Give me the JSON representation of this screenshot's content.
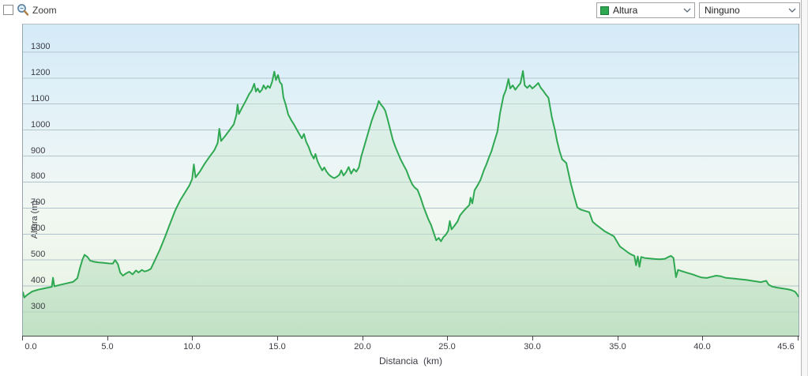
{
  "toolbar": {
    "zoom_checkbox_label": "Zoom",
    "zoom_checked": false
  },
  "controls": {
    "series_select": {
      "value": "Altura",
      "swatch_color": "#2fa852"
    },
    "secondary_select": {
      "value": "Ninguno"
    }
  },
  "chart_data": {
    "type": "area",
    "title": "",
    "xlabel": "Distancia  (km)",
    "ylabel": "Altura (m)",
    "xlim": [
      0,
      45.6
    ],
    "ylim_m": [
      209,
      1406
    ],
    "grid": true,
    "x_ticks": [
      0,
      5,
      10,
      15,
      20,
      25,
      30,
      35,
      40,
      45.6
    ],
    "x_tick_labels": [
      "0.0",
      "5.0",
      "10.0",
      "15.0",
      "20.0",
      "25.0",
      "30.0",
      "35.0",
      "40.0",
      "45.6"
    ],
    "y_ticks": [
      300,
      400,
      500,
      600,
      700,
      800,
      900,
      1000,
      1100,
      1200,
      1300
    ],
    "colors": {
      "line": "#2fa852",
      "gridline": "#b3c2cb",
      "fill_top": "rgba(214,238,218,0.35)",
      "fill_bottom": "rgba(176,218,184,0.65)",
      "axis": "#474747",
      "bg_top": "#d4eaf7",
      "bg_bottom": "#e0efdc"
    },
    "series": [
      {
        "name": "Altura",
        "unit": "m",
        "points": [
          [
            0.0,
            378
          ],
          [
            0.08,
            356
          ],
          [
            0.25,
            366
          ],
          [
            0.55,
            379
          ],
          [
            0.9,
            386
          ],
          [
            1.25,
            391
          ],
          [
            1.55,
            395
          ],
          [
            1.7,
            397
          ],
          [
            1.77,
            432
          ],
          [
            1.85,
            399
          ],
          [
            2.15,
            404
          ],
          [
            2.55,
            410
          ],
          [
            2.95,
            416
          ],
          [
            3.2,
            430
          ],
          [
            3.35,
            468
          ],
          [
            3.5,
            502
          ],
          [
            3.62,
            520
          ],
          [
            3.8,
            512
          ],
          [
            3.95,
            498
          ],
          [
            4.15,
            494
          ],
          [
            4.45,
            491
          ],
          [
            4.75,
            489
          ],
          [
            5.05,
            487
          ],
          [
            5.28,
            486
          ],
          [
            5.42,
            500
          ],
          [
            5.58,
            485
          ],
          [
            5.72,
            452
          ],
          [
            5.88,
            440
          ],
          [
            6.05,
            448
          ],
          [
            6.25,
            455
          ],
          [
            6.45,
            445
          ],
          [
            6.65,
            460
          ],
          [
            6.8,
            452
          ],
          [
            7.0,
            462
          ],
          [
            7.15,
            456
          ],
          [
            7.35,
            460
          ],
          [
            7.52,
            466
          ],
          [
            7.75,
            498
          ],
          [
            8.05,
            540
          ],
          [
            8.35,
            588
          ],
          [
            8.65,
            640
          ],
          [
            8.95,
            690
          ],
          [
            9.25,
            730
          ],
          [
            9.55,
            762
          ],
          [
            9.8,
            788
          ],
          [
            9.95,
            812
          ],
          [
            10.05,
            868
          ],
          [
            10.15,
            818
          ],
          [
            10.4,
            840
          ],
          [
            10.7,
            872
          ],
          [
            11.0,
            900
          ],
          [
            11.25,
            922
          ],
          [
            11.45,
            950
          ],
          [
            11.55,
            1005
          ],
          [
            11.65,
            958
          ],
          [
            11.9,
            978
          ],
          [
            12.15,
            1000
          ],
          [
            12.4,
            1022
          ],
          [
            12.55,
            1058
          ],
          [
            12.62,
            1098
          ],
          [
            12.7,
            1062
          ],
          [
            12.9,
            1088
          ],
          [
            13.1,
            1112
          ],
          [
            13.3,
            1138
          ],
          [
            13.45,
            1152
          ],
          [
            13.6,
            1178
          ],
          [
            13.7,
            1148
          ],
          [
            13.8,
            1160
          ],
          [
            13.92,
            1145
          ],
          [
            14.05,
            1155
          ],
          [
            14.15,
            1172
          ],
          [
            14.28,
            1158
          ],
          [
            14.4,
            1170
          ],
          [
            14.52,
            1162
          ],
          [
            14.65,
            1185
          ],
          [
            14.78,
            1225
          ],
          [
            14.88,
            1192
          ],
          [
            15.0,
            1212
          ],
          [
            15.1,
            1185
          ],
          [
            15.22,
            1175
          ],
          [
            15.32,
            1125
          ],
          [
            15.45,
            1098
          ],
          [
            15.6,
            1060
          ],
          [
            15.8,
            1035
          ],
          [
            15.95,
            1020
          ],
          [
            16.2,
            990
          ],
          [
            16.4,
            968
          ],
          [
            16.52,
            985
          ],
          [
            16.65,
            955
          ],
          [
            16.8,
            935
          ],
          [
            16.95,
            908
          ],
          [
            17.1,
            890
          ],
          [
            17.2,
            908
          ],
          [
            17.32,
            880
          ],
          [
            17.45,
            862
          ],
          [
            17.6,
            845
          ],
          [
            17.72,
            856
          ],
          [
            17.85,
            840
          ],
          [
            18.0,
            828
          ],
          [
            18.15,
            820
          ],
          [
            18.3,
            815
          ],
          [
            18.45,
            820
          ],
          [
            18.6,
            828
          ],
          [
            18.72,
            845
          ],
          [
            18.85,
            825
          ],
          [
            19.0,
            838
          ],
          [
            19.15,
            858
          ],
          [
            19.3,
            832
          ],
          [
            19.45,
            850
          ],
          [
            19.6,
            840
          ],
          [
            19.75,
            856
          ],
          [
            19.9,
            900
          ],
          [
            20.1,
            945
          ],
          [
            20.3,
            990
          ],
          [
            20.5,
            1035
          ],
          [
            20.65,
            1062
          ],
          [
            20.8,
            1085
          ],
          [
            20.92,
            1112
          ],
          [
            21.05,
            1098
          ],
          [
            21.18,
            1088
          ],
          [
            21.3,
            1075
          ],
          [
            21.45,
            1040
          ],
          [
            21.6,
            1000
          ],
          [
            21.75,
            962
          ],
          [
            21.9,
            935
          ],
          [
            22.05,
            912
          ],
          [
            22.2,
            888
          ],
          [
            22.38,
            865
          ],
          [
            22.55,
            845
          ],
          [
            22.72,
            815
          ],
          [
            22.9,
            790
          ],
          [
            23.05,
            778
          ],
          [
            23.2,
            770
          ],
          [
            23.38,
            740
          ],
          [
            23.55,
            705
          ],
          [
            23.7,
            680
          ],
          [
            23.85,
            655
          ],
          [
            24.0,
            635
          ],
          [
            24.15,
            605
          ],
          [
            24.3,
            576
          ],
          [
            24.45,
            585
          ],
          [
            24.58,
            572
          ],
          [
            24.72,
            588
          ],
          [
            24.85,
            596
          ],
          [
            25.0,
            612
          ],
          [
            25.1,
            650
          ],
          [
            25.2,
            618
          ],
          [
            25.35,
            630
          ],
          [
            25.55,
            648
          ],
          [
            25.7,
            672
          ],
          [
            25.9,
            688
          ],
          [
            26.1,
            702
          ],
          [
            26.25,
            712
          ],
          [
            26.32,
            740
          ],
          [
            26.42,
            718
          ],
          [
            26.55,
            768
          ],
          [
            26.75,
            790
          ],
          [
            26.9,
            808
          ],
          [
            27.1,
            845
          ],
          [
            27.25,
            868
          ],
          [
            27.4,
            895
          ],
          [
            27.55,
            919
          ],
          [
            27.7,
            952
          ],
          [
            27.9,
            994
          ],
          [
            28.05,
            1065
          ],
          [
            28.25,
            1130
          ],
          [
            28.4,
            1155
          ],
          [
            28.55,
            1196
          ],
          [
            28.65,
            1160
          ],
          [
            28.8,
            1172
          ],
          [
            28.95,
            1155
          ],
          [
            29.1,
            1168
          ],
          [
            29.25,
            1180
          ],
          [
            29.4,
            1227
          ],
          [
            29.5,
            1172
          ],
          [
            29.65,
            1162
          ],
          [
            29.8,
            1172
          ],
          [
            29.95,
            1160
          ],
          [
            30.1,
            1168
          ],
          [
            30.3,
            1181
          ],
          [
            30.45,
            1162
          ],
          [
            30.6,
            1150
          ],
          [
            30.75,
            1136
          ],
          [
            30.9,
            1124
          ],
          [
            31.1,
            1049
          ],
          [
            31.28,
            1000
          ],
          [
            31.4,
            959
          ],
          [
            31.55,
            920
          ],
          [
            31.7,
            888
          ],
          [
            31.95,
            873
          ],
          [
            32.2,
            798
          ],
          [
            32.4,
            748
          ],
          [
            32.6,
            702
          ],
          [
            32.8,
            694
          ],
          [
            33.0,
            690
          ],
          [
            33.3,
            684
          ],
          [
            33.5,
            647
          ],
          [
            33.7,
            636
          ],
          [
            33.9,
            626
          ],
          [
            34.2,
            611
          ],
          [
            34.5,
            600
          ],
          [
            34.75,
            591
          ],
          [
            35.1,
            552
          ],
          [
            35.35,
            540
          ],
          [
            35.6,
            528
          ],
          [
            35.8,
            520
          ],
          [
            35.95,
            516
          ],
          [
            36.05,
            480
          ],
          [
            36.15,
            514
          ],
          [
            36.25,
            474
          ],
          [
            36.35,
            512
          ],
          [
            36.55,
            508
          ],
          [
            36.85,
            506
          ],
          [
            37.15,
            504
          ],
          [
            37.45,
            503
          ],
          [
            37.75,
            505
          ],
          [
            37.95,
            512
          ],
          [
            38.1,
            516
          ],
          [
            38.25,
            508
          ],
          [
            38.4,
            434
          ],
          [
            38.52,
            462
          ],
          [
            38.8,
            456
          ],
          [
            39.1,
            450
          ],
          [
            39.4,
            444
          ],
          [
            39.65,
            438
          ],
          [
            39.9,
            433
          ],
          [
            40.2,
            431
          ],
          [
            40.5,
            436
          ],
          [
            40.75,
            440
          ],
          [
            41.0,
            438
          ],
          [
            41.3,
            432
          ],
          [
            41.6,
            430
          ],
          [
            41.9,
            428
          ],
          [
            42.2,
            426
          ],
          [
            42.5,
            424
          ],
          [
            42.8,
            421
          ],
          [
            43.1,
            418
          ],
          [
            43.4,
            415
          ],
          [
            43.55,
            418
          ],
          [
            43.7,
            420
          ],
          [
            43.85,
            405
          ],
          [
            44.05,
            398
          ],
          [
            44.35,
            394
          ],
          [
            44.65,
            391
          ],
          [
            44.95,
            388
          ],
          [
            45.2,
            384
          ],
          [
            45.4,
            378
          ],
          [
            45.52,
            368
          ],
          [
            45.6,
            358
          ]
        ]
      }
    ]
  }
}
